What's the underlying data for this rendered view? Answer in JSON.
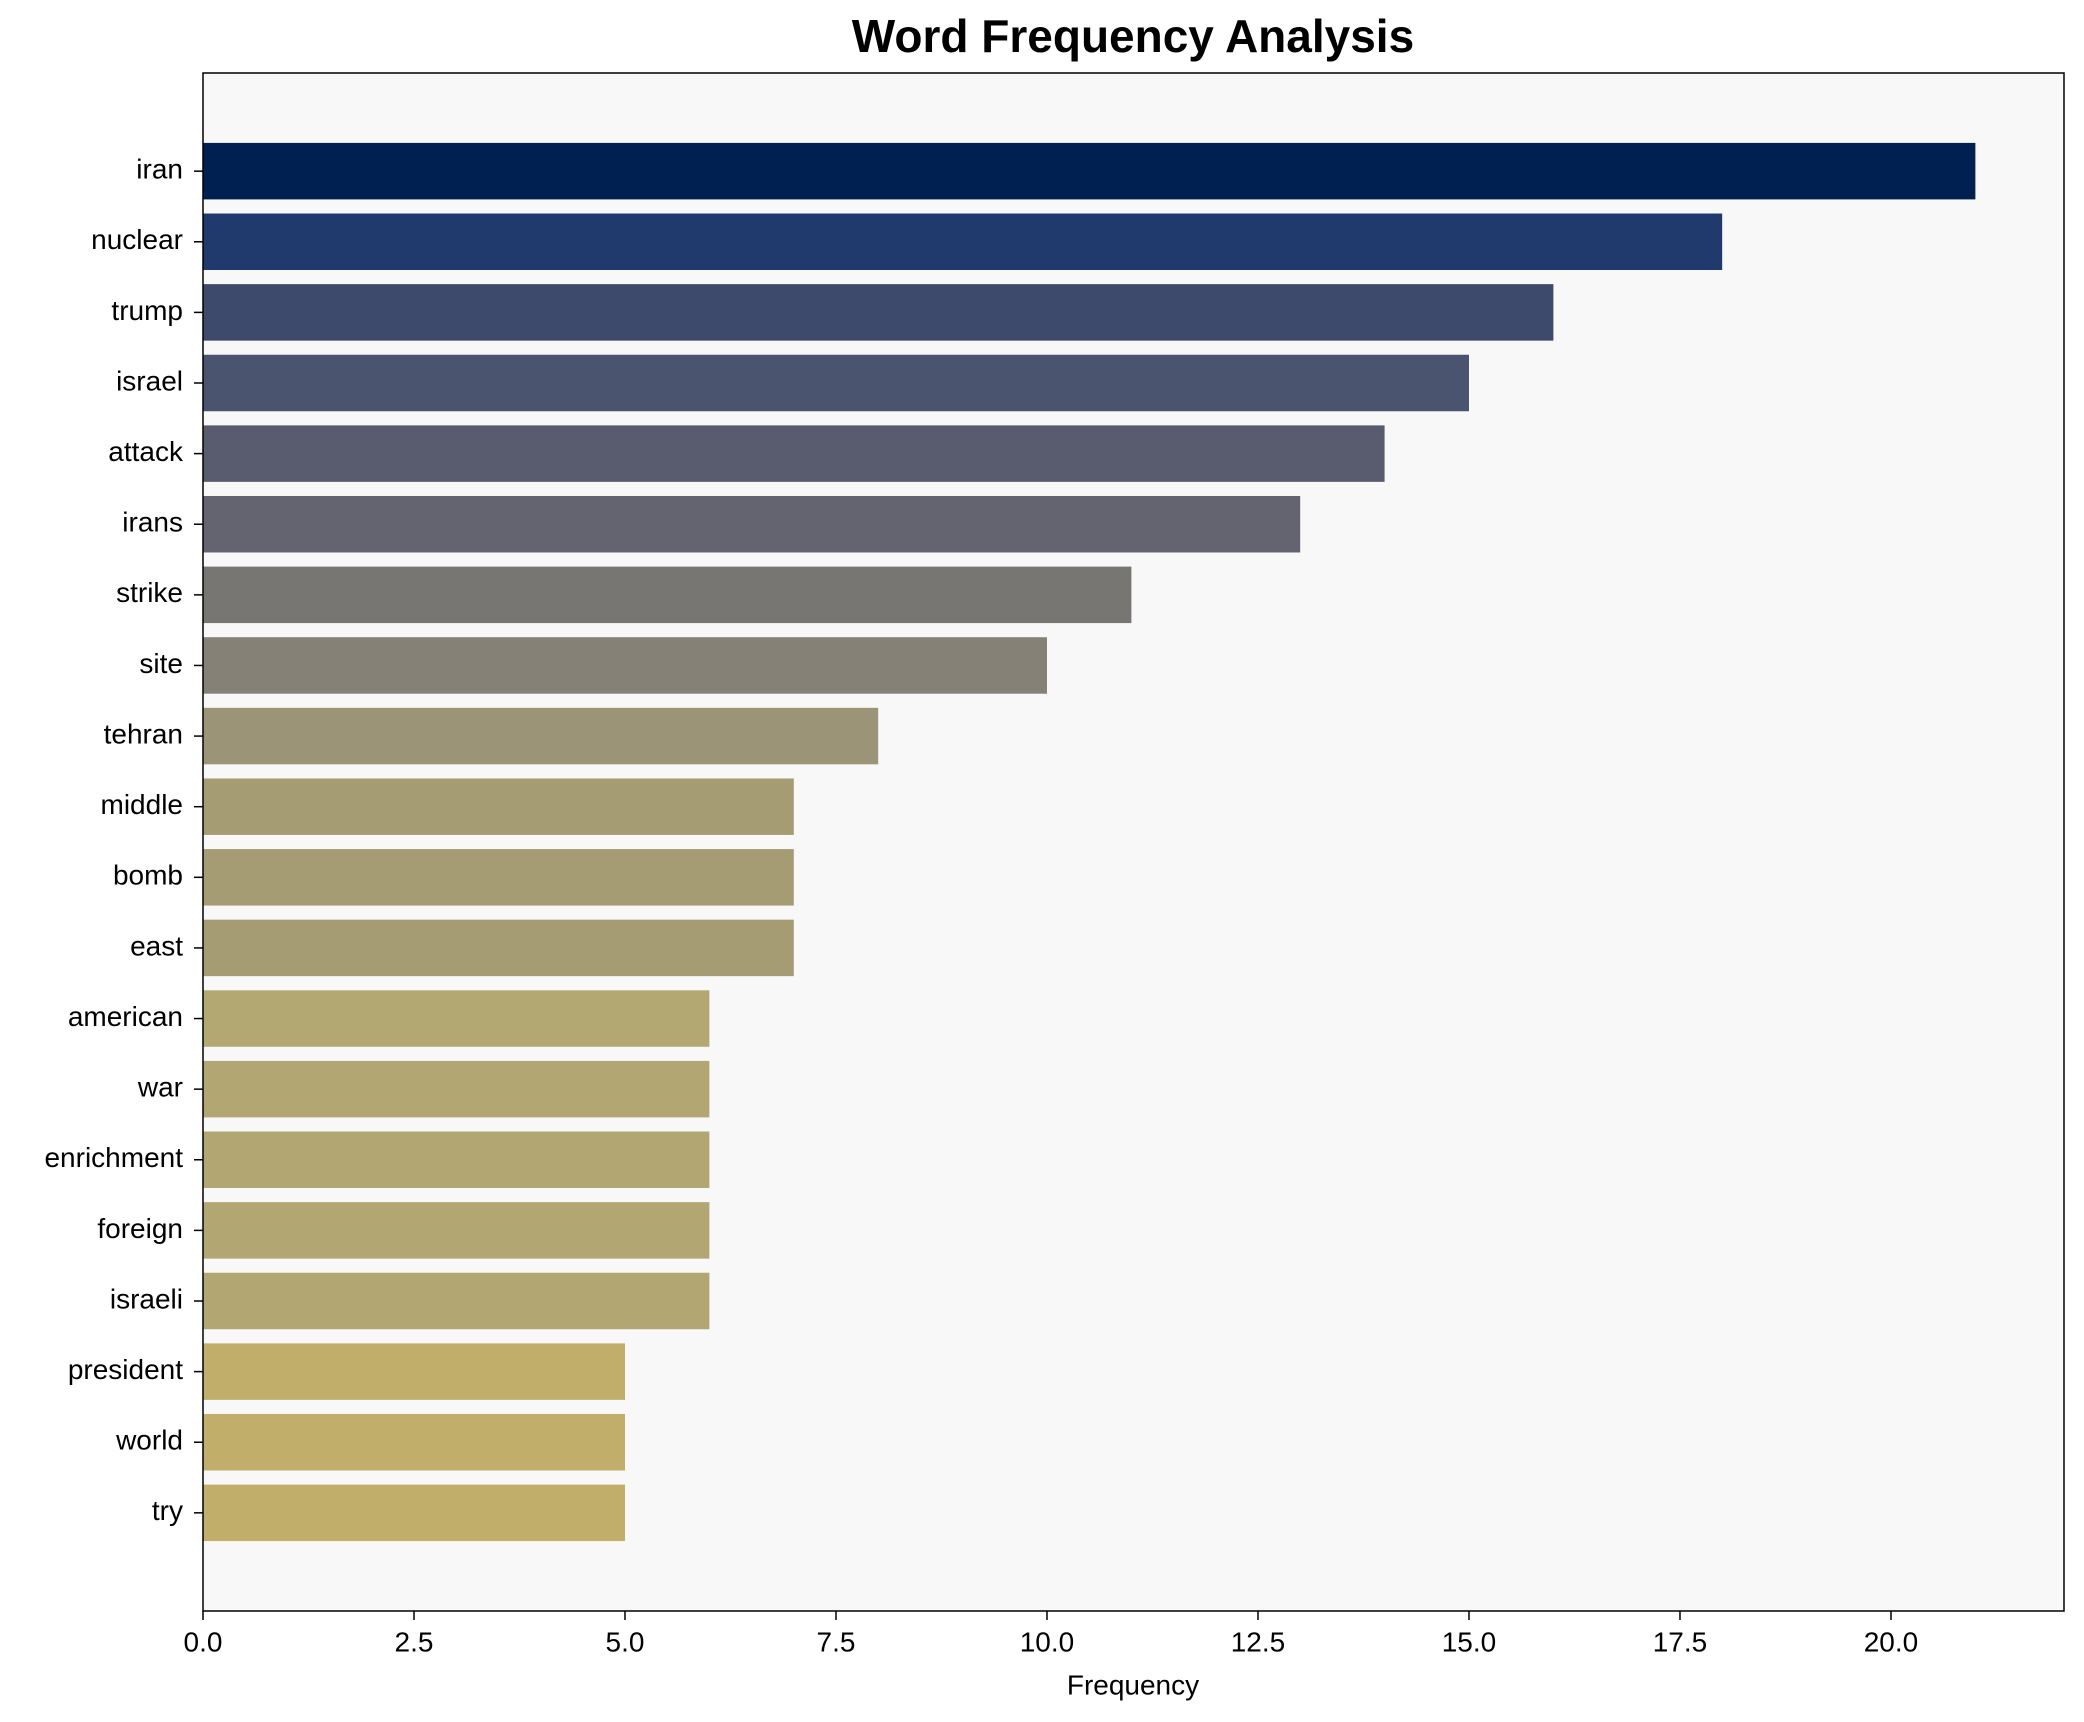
{
  "chart_data": {
    "type": "barh",
    "title": "Word Frequency Analysis",
    "xlabel": "Frequency",
    "categories": [
      "iran",
      "nuclear",
      "trump",
      "israel",
      "attack",
      "irans",
      "strike",
      "site",
      "tehran",
      "middle",
      "bomb",
      "east",
      "american",
      "war",
      "enrichment",
      "foreign",
      "israeli",
      "president",
      "world",
      "try"
    ],
    "values": [
      21,
      18,
      16,
      15,
      14,
      13,
      11,
      10,
      8,
      7,
      7,
      7,
      6,
      6,
      6,
      6,
      6,
      5,
      5,
      5
    ],
    "colors": [
      "#002051",
      "#213a6e",
      "#3d4a6c",
      "#4b546e",
      "#595c6e",
      "#63646f",
      "#777673",
      "#858177",
      "#9b9476",
      "#a59c73",
      "#a59c73",
      "#a59c73",
      "#b4a872",
      "#b2a672",
      "#b2a672",
      "#b2a672",
      "#b2a672",
      "#c0ae6a",
      "#c0ae6a",
      "#c0ae6a"
    ],
    "xlim": [
      0,
      22.05
    ],
    "xticks": [
      {
        "value": 0,
        "label": "0.0"
      },
      {
        "value": 2.5,
        "label": "2.5"
      },
      {
        "value": 5,
        "label": "5.0"
      },
      {
        "value": 7.5,
        "label": "7.5"
      },
      {
        "value": 10,
        "label": "10.0"
      },
      {
        "value": 12.5,
        "label": "12.5"
      },
      {
        "value": 15,
        "label": "15.0"
      },
      {
        "value": 17.5,
        "label": "17.5"
      },
      {
        "value": 20,
        "label": "20.0"
      }
    ]
  }
}
